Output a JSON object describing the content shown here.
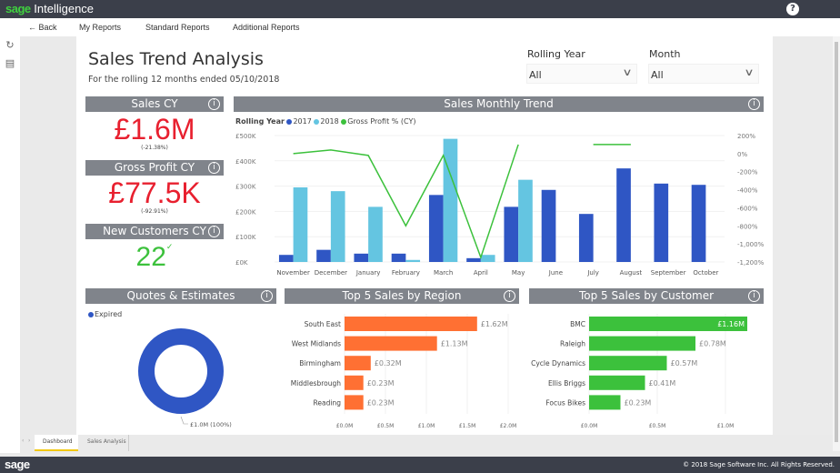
{
  "app": {
    "brand_sage": "sage",
    "brand_product": "Intelligence",
    "help_icon": "?"
  },
  "nav": {
    "back": "← Back",
    "my_reports": "My Reports",
    "standard_reports": "Standard Reports",
    "additional_reports": "Additional Reports"
  },
  "rail": {
    "refresh_icon": "↻",
    "report_icon": "▤"
  },
  "page": {
    "title": "Sales Trend Analysis",
    "subtitle": "For the rolling 12 months ended 05/10/2018"
  },
  "slicers": [
    {
      "label": "Rolling Year",
      "value": "All",
      "chevron": "∨"
    },
    {
      "label": "Month",
      "value": "All",
      "chevron": "∨"
    }
  ],
  "info_icon": "i",
  "kpis": {
    "sales": {
      "title": "Sales CY",
      "value": "£1.6M",
      "change": "(-21.38%)",
      "color": "#e8202f"
    },
    "gross_profit": {
      "title": "Gross Profit CY",
      "value": "£77.5K",
      "change": "(-92.91%)",
      "color": "#e8202f"
    },
    "new_customers": {
      "title": "New Customers CY",
      "value": "22",
      "check": "✓",
      "color": "#3cc13c"
    }
  },
  "chart_data": [
    {
      "type": "bar",
      "title": "Sales Monthly Trend",
      "legend_title": "Rolling Year",
      "legend": [
        "2017",
        "2018",
        "Gross Profit % (CY)"
      ],
      "categories": [
        "November",
        "December",
        "January",
        "February",
        "March",
        "April",
        "May",
        "June",
        "July",
        "August",
        "September",
        "October"
      ],
      "series": [
        {
          "name": "2017",
          "color": "#2f56c4",
          "values": [
            28000,
            48000,
            33000,
            33000,
            265000,
            15000,
            218000,
            285000,
            190000,
            370000,
            310000,
            305000
          ]
        },
        {
          "name": "2018",
          "color": "#64c5e1",
          "values": [
            295000,
            280000,
            218000,
            8000,
            487000,
            28000,
            325000,
            0,
            0,
            0,
            0,
            0
          ]
        },
        {
          "name": "Gross Profit % (CY)",
          "type": "line",
          "axis": "right",
          "color": "#3cc13c",
          "values": [
            0,
            40,
            -20,
            -800,
            -20,
            -1150,
            100,
            null,
            100,
            100,
            null,
            null
          ]
        }
      ],
      "yticks": [
        "£500K",
        "£400K",
        "£300K",
        "£200K",
        "£100K",
        "£0K"
      ],
      "ylim": [
        0,
        500000
      ],
      "y2ticks": [
        "200%",
        "0%",
        "-200%",
        "-400%",
        "-600%",
        "-800%",
        "-1,000%",
        "-1,200%"
      ],
      "y2lim": [
        -1200,
        200
      ],
      "legend_position": "top-left"
    },
    {
      "type": "pie",
      "title": "Quotes & Estimates",
      "legend": [
        "Expired"
      ],
      "slices": [
        {
          "name": "Expired",
          "value": 1.0,
          "label": "£1.0M (100%)",
          "color": "#2f56c4"
        }
      ],
      "donut": true
    },
    {
      "type": "bar",
      "orientation": "horizontal",
      "title": "Top 5 Sales by Region",
      "categories": [
        "South East",
        "West Midlands",
        "Birmingham",
        "Middlesbrough",
        "Reading"
      ],
      "values": [
        1.62,
        1.13,
        0.32,
        0.23,
        0.23
      ],
      "labels": [
        "£1.62M",
        "£1.13M",
        "£0.32M",
        "£0.23M",
        "£0.23M"
      ],
      "color": "#ff7033",
      "xticks": [
        "£0.0M",
        "£0.5M",
        "£1.0M",
        "£1.5M",
        "£2.0M"
      ],
      "xlim": [
        0,
        2.0
      ]
    },
    {
      "type": "bar",
      "orientation": "horizontal",
      "title": "Top 5 Sales by Customer",
      "categories": [
        "BMC",
        "Raleigh",
        "Cycle Dynamics",
        "Ellis Briggs",
        "Focus Bikes"
      ],
      "values": [
        1.16,
        0.78,
        0.57,
        0.41,
        0.23
      ],
      "labels": [
        "£1.16M",
        "£0.78M",
        "£0.57M",
        "£0.41M",
        "£0.23M"
      ],
      "color": "#3cc13c",
      "xticks": [
        "£0.0M",
        "£0.5M",
        "£1.0M"
      ],
      "xlim": [
        0,
        1.2
      ]
    }
  ],
  "tabs": {
    "nav_prev": "‹",
    "nav_next": "›",
    "items": [
      "Dashboard",
      "Sales Analysis"
    ],
    "active": "Dashboard"
  },
  "footer": {
    "logo": "sage",
    "copyright": "© 2018 Sage Software Inc. All Rights Reserved."
  }
}
